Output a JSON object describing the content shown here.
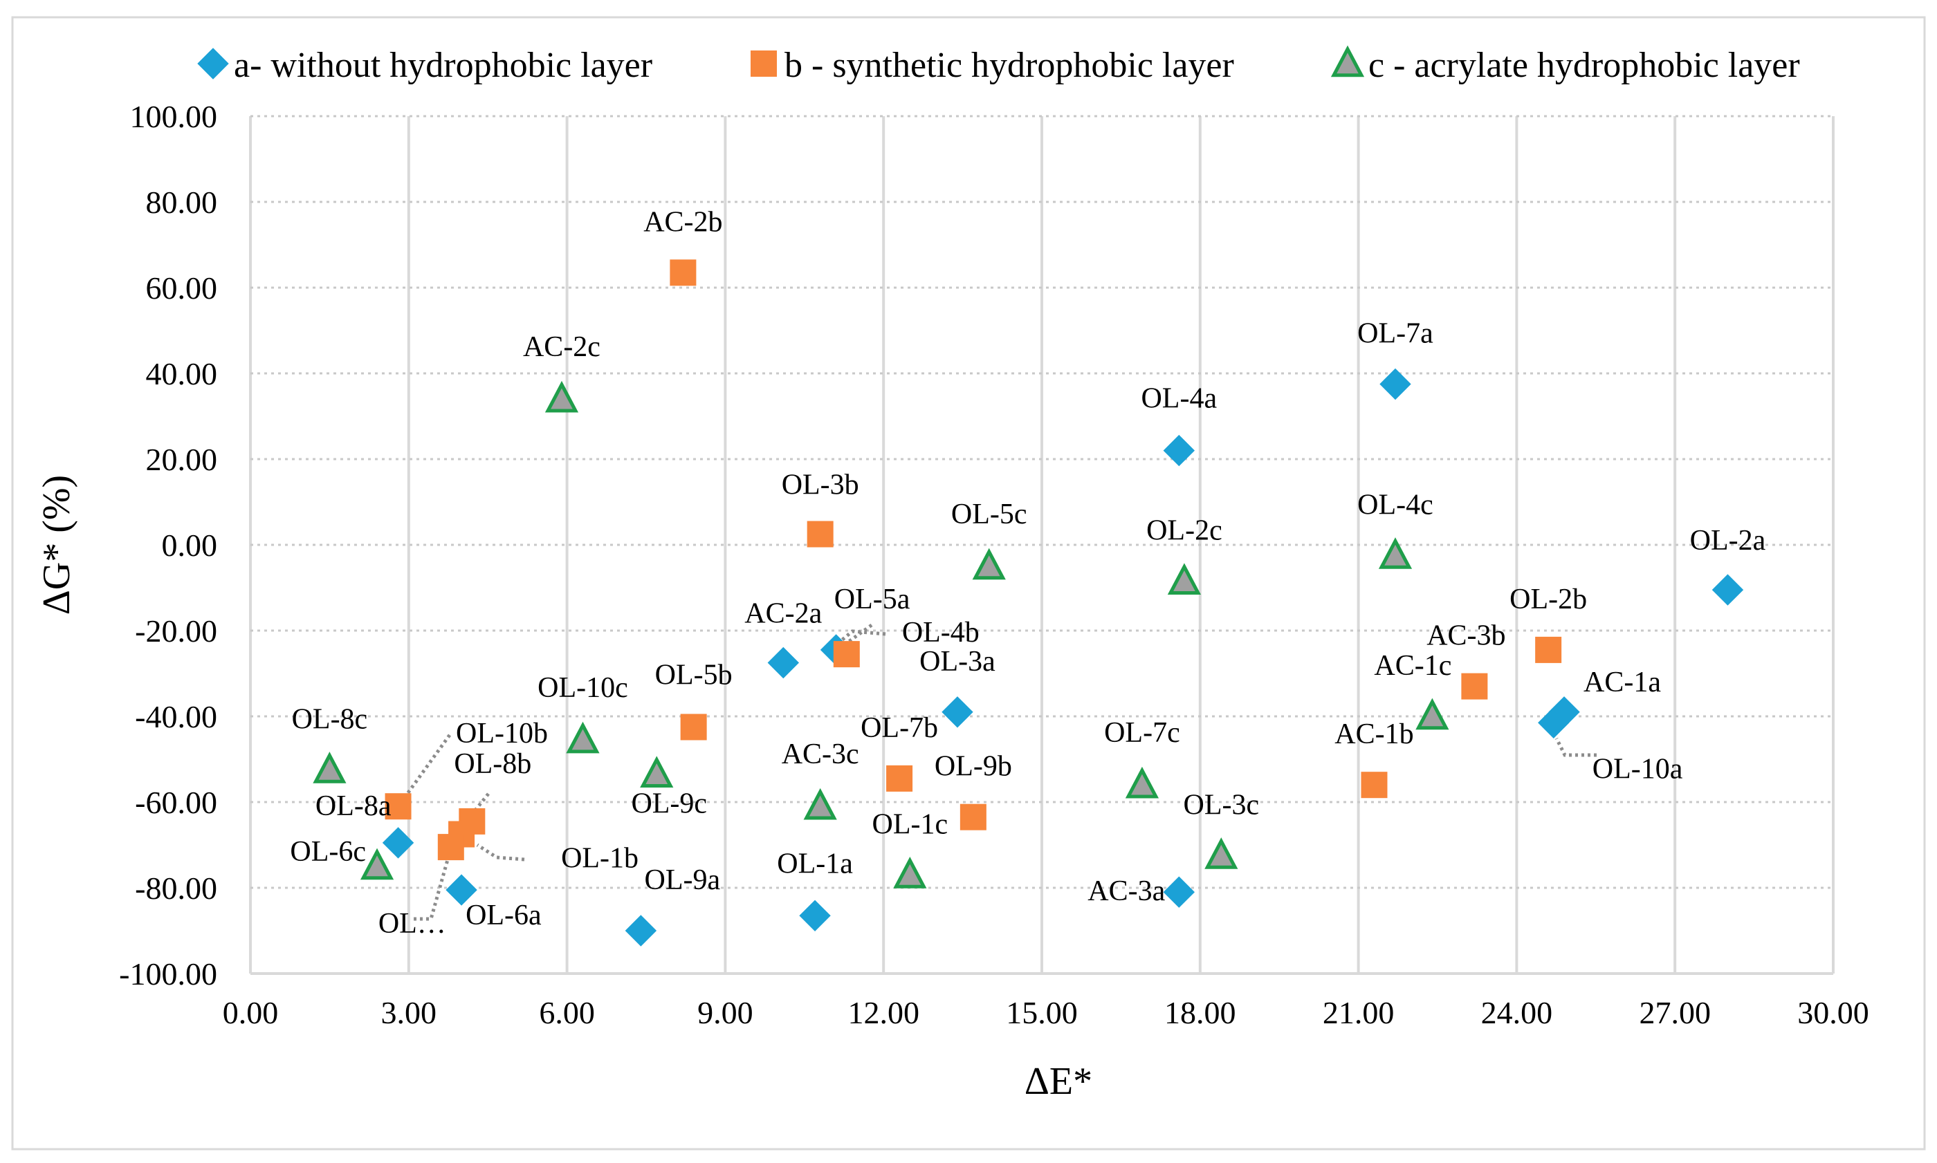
{
  "chart_data": {
    "type": "scatter",
    "title": "",
    "xlabel": "ΔE*",
    "ylabel": "ΔG* (%)",
    "xlim": [
      0,
      30
    ],
    "ylim": [
      -100,
      100
    ],
    "x_ticks": [
      "0.00",
      "3.00",
      "6.00",
      "9.00",
      "12.00",
      "15.00",
      "18.00",
      "21.00",
      "24.00",
      "27.00",
      "30.00"
    ],
    "y_ticks": [
      "100.00",
      "80.00",
      "60.00",
      "40.00",
      "20.00",
      "0.00",
      "-20.00",
      "-40.00",
      "-60.00",
      "-80.00",
      "-100.00"
    ],
    "grid": true,
    "legend_position": "top",
    "series": [
      {
        "name": "a- without hydrophobic layer",
        "color": "#1ba1d6",
        "marker": "diamond",
        "points": [
          {
            "label": "OL-7a",
            "x": 21.7,
            "y": 37.5
          },
          {
            "label": "OL-4a",
            "x": 17.6,
            "y": 22.0
          },
          {
            "label": "OL-2a",
            "x": 28.0,
            "y": -10.5
          },
          {
            "label": "AC-2a",
            "x": 10.1,
            "y": -27.5
          },
          {
            "label": "OL-5a",
            "x": 11.1,
            "y": -24.5
          },
          {
            "label": "OL-3a",
            "x": 13.4,
            "y": -39.0
          },
          {
            "label": "AC-1a",
            "x": 24.9,
            "y": -39.0
          },
          {
            "label": "OL-10a",
            "x": 24.7,
            "y": -41.5
          },
          {
            "label": "OL-8a",
            "x": 2.8,
            "y": -69.5
          },
          {
            "label": "OL-6a",
            "x": 4.0,
            "y": -80.5
          },
          {
            "label": "OL-9a",
            "x": 7.4,
            "y": -90.0
          },
          {
            "label": "OL-1a",
            "x": 10.7,
            "y": -86.5
          },
          {
            "label": "AC-3a",
            "x": 17.6,
            "y": -81.0
          }
        ]
      },
      {
        "name": "b - synthetic hydrophobic layer",
        "color": "#f7853a",
        "marker": "square",
        "points": [
          {
            "label": "AC-2b",
            "x": 8.2,
            "y": 63.5
          },
          {
            "label": "OL-3b",
            "x": 10.8,
            "y": 2.5
          },
          {
            "label": "OL-4b",
            "x": 11.3,
            "y": -25.5
          },
          {
            "label": "OL-5b",
            "x": 8.4,
            "y": -42.5
          },
          {
            "label": "OL-2b",
            "x": 24.6,
            "y": -24.5
          },
          {
            "label": "AC-3b",
            "x": 23.2,
            "y": -33.0
          },
          {
            "label": "OL-7b",
            "x": 12.3,
            "y": -54.5
          },
          {
            "label": "OL-9b",
            "x": 13.7,
            "y": -63.5
          },
          {
            "label": "AC-1b",
            "x": 21.3,
            "y": -56.0
          },
          {
            "label": "OL-10b",
            "x": 2.8,
            "y": -61.0
          },
          {
            "label": "OL-8b",
            "x": 4.2,
            "y": -64.5
          },
          {
            "label": "OL-1b",
            "x": 4.0,
            "y": -67.5
          },
          {
            "label": "OL…",
            "x": 3.8,
            "y": -70.5
          }
        ]
      },
      {
        "name": "c - acrylate hydrophobic layer",
        "color": "#a0a0a0",
        "edge_color": "#1f9e4a",
        "marker": "triangle",
        "points": [
          {
            "label": "AC-2c",
            "x": 5.9,
            "y": 34.0
          },
          {
            "label": "OL-5c",
            "x": 14.0,
            "y": -5.0
          },
          {
            "label": "OL-2c",
            "x": 17.7,
            "y": -8.5
          },
          {
            "label": "OL-4c",
            "x": 21.7,
            "y": -2.5
          },
          {
            "label": "AC-1c",
            "x": 22.4,
            "y": -40.0
          },
          {
            "label": "OL-10c",
            "x": 6.3,
            "y": -45.5
          },
          {
            "label": "OL-9c",
            "x": 7.7,
            "y": -53.5
          },
          {
            "label": "AC-3c",
            "x": 10.8,
            "y": -61.0
          },
          {
            "label": "OL-7c",
            "x": 16.9,
            "y": -56.0
          },
          {
            "label": "OL-8c",
            "x": 1.5,
            "y": -52.5
          },
          {
            "label": "OL-6c",
            "x": 2.4,
            "y": -75.0
          },
          {
            "label": "OL-1c",
            "x": 12.5,
            "y": -77.0
          },
          {
            "label": "OL-3c",
            "x": 18.4,
            "y": -72.5
          }
        ]
      }
    ]
  }
}
